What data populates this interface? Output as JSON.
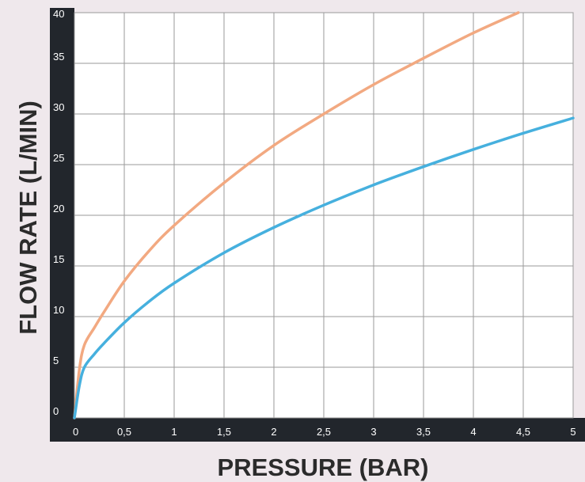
{
  "chart_data": {
    "type": "line",
    "title": "",
    "xlabel": "PRESSURE (BAR)",
    "ylabel": "FLOW RATE (L/MIN)",
    "xlim": [
      0,
      5
    ],
    "ylim": [
      0,
      40
    ],
    "x_ticks": [
      0,
      0.5,
      1,
      1.5,
      2,
      2.5,
      3,
      3.5,
      4,
      4.5,
      5
    ],
    "x_tick_labels": [
      "0",
      "0,5",
      "1",
      "1,5",
      "2",
      "2,5",
      "3",
      "3,5",
      "4",
      "4,5",
      "5"
    ],
    "y_ticks": [
      0,
      5,
      10,
      15,
      20,
      25,
      30,
      35,
      40
    ],
    "y_tick_labels": [
      "0",
      "5",
      "10",
      "15",
      "20",
      "25",
      "30",
      "35",
      "40"
    ],
    "grid": true,
    "series": [
      {
        "color": "#f2a981",
        "x": [
          0,
          0.05,
          0.1,
          0.2,
          0.3,
          0.5,
          0.75,
          1,
          1.5,
          2,
          2.5,
          3,
          3.5,
          4,
          4.45
        ],
        "values": [
          0,
          4.8,
          7.2,
          8.9,
          10.5,
          13.5,
          16.5,
          19,
          23.2,
          26.9,
          30,
          32.9,
          35.5,
          38,
          40
        ]
      },
      {
        "color": "#46b0de",
        "x": [
          0,
          0.05,
          0.1,
          0.2,
          0.3,
          0.5,
          0.75,
          1,
          1.5,
          2,
          2.5,
          3,
          3.5,
          4,
          4.5,
          5
        ],
        "values": [
          0,
          3.2,
          5,
          6.3,
          7.4,
          9.4,
          11.5,
          13.3,
          16.3,
          18.8,
          21,
          23,
          24.8,
          26.5,
          28.1,
          29.6
        ]
      }
    ]
  }
}
